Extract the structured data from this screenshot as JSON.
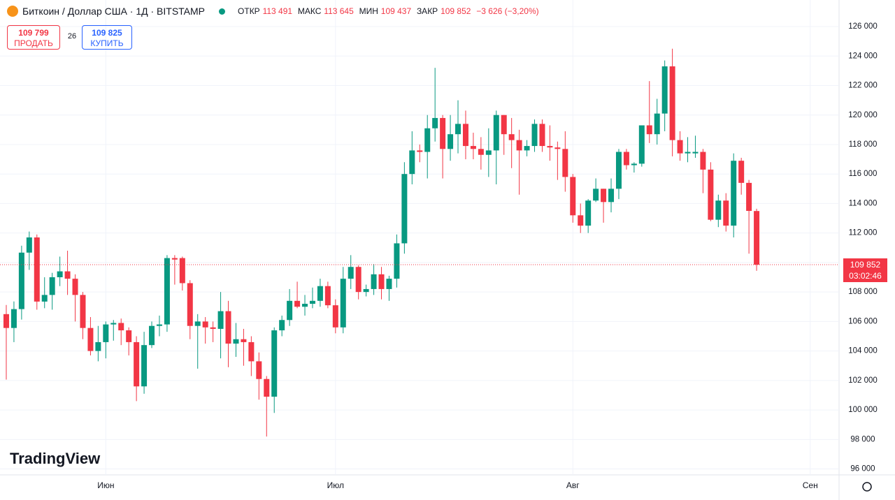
{
  "header": {
    "title": "Биткоин / Доллар США · 1Д · BITSTAMP",
    "open_label": "ОТКР",
    "open": "113 491",
    "high_label": "МАКС",
    "high": "113 645",
    "low_label": "МИН",
    "low": "109 437",
    "close_label": "ЗАКР",
    "close": "109 852",
    "change": "−3 626 (−3,20%)"
  },
  "trade": {
    "sell_price": "109 799",
    "sell_label": "ПРОДАТЬ",
    "spread": "26",
    "buy_price": "109 825",
    "buy_label": "КУПИТЬ"
  },
  "price_tag": {
    "price": "109 852",
    "countdown": "03:02:46"
  },
  "logo": "TradingView",
  "chart_data": {
    "type": "candlestick",
    "up_color": "#089981",
    "down_color": "#f23645",
    "grid": true,
    "x": [
      0,
      1,
      2,
      3,
      4,
      5,
      6,
      7,
      8,
      9,
      10,
      11,
      12,
      13,
      14,
      15,
      16,
      17,
      18,
      19,
      20,
      21,
      22,
      23,
      24,
      25,
      26,
      27,
      28,
      29,
      30,
      31,
      32,
      33,
      34,
      35,
      36,
      37,
      38,
      39,
      40,
      41,
      42,
      43,
      44,
      45,
      46,
      47,
      48,
      49,
      50,
      51,
      52,
      53,
      54,
      55,
      56,
      57,
      58,
      59,
      60,
      61,
      62,
      63,
      64,
      65,
      66,
      67,
      68,
      69,
      70,
      71,
      72,
      73,
      74,
      75,
      76,
      77,
      78,
      79,
      80,
      81,
      82,
      83,
      84,
      85,
      86,
      87,
      88,
      89,
      90,
      91,
      92,
      93,
      94,
      95,
      96,
      97,
      98
    ],
    "open": [
      106500,
      105560,
      106840,
      110670,
      111700,
      107350,
      107800,
      109000,
      109400,
      108900,
      107800,
      105560,
      104000,
      104600,
      105800,
      105900,
      105400,
      104600,
      101600,
      104400,
      105700,
      105800,
      110300,
      110300,
      108600,
      105700,
      106000,
      105600,
      105500,
      106700,
      104500,
      104800,
      104600,
      103300,
      102100,
      100900,
      105400,
      106100,
      107400,
      107000,
      107200,
      107400,
      108400,
      107100,
      105600,
      108900,
      109700,
      108000,
      108200,
      109200,
      108200,
      108900,
      111300,
      116000,
      117600,
      117500,
      119100,
      119800,
      117700,
      118700,
      119400,
      117900,
      117700,
      117300,
      117600,
      120000,
      118700,
      118300,
      117600,
      117900,
      119400,
      117900,
      117800,
      117700,
      115800,
      113200,
      112500,
      114200,
      115000,
      114100,
      115000,
      117500,
      116600,
      116700,
      119300,
      118700,
      120100,
      123300,
      118300,
      117400,
      117400,
      117500,
      116300,
      112900,
      114200,
      112500,
      116900,
      115400,
      113491
    ],
    "high": [
      107120,
      107360,
      111140,
      112100,
      111900,
      109000,
      109300,
      110400,
      110800,
      109200,
      108000,
      106300,
      105700,
      106000,
      106100,
      106200,
      105600,
      105000,
      105300,
      106000,
      106400,
      110500,
      110500,
      110400,
      108800,
      106500,
      106300,
      106000,
      108000,
      107400,
      105900,
      105500,
      105000,
      103900,
      102300,
      105600,
      106400,
      108200,
      108700,
      107800,
      108300,
      108900,
      108700,
      107500,
      109700,
      110500,
      109800,
      108500,
      109900,
      109700,
      109100,
      111900,
      116800,
      118900,
      118000,
      120000,
      123200,
      120000,
      120000,
      121000,
      120300,
      118800,
      118500,
      119100,
      120300,
      120000,
      119800,
      119000,
      118300,
      119700,
      119700,
      119300,
      118200,
      118900,
      116000,
      114000,
      114300,
      115700,
      115000,
      115700,
      117700,
      117700,
      116800,
      119300,
      122300,
      121100,
      123700,
      124500,
      118900,
      118500,
      118600,
      117700,
      116800,
      114600,
      114700,
      117400,
      117100,
      115600,
      113645
    ],
    "low": [
      102060,
      104600,
      106130,
      109500,
      106800,
      106900,
      106800,
      108400,
      107800,
      106000,
      104800,
      103700,
      103300,
      103500,
      104700,
      104400,
      103700,
      100600,
      101100,
      104200,
      105000,
      105300,
      108500,
      108100,
      104800,
      102800,
      104500,
      104600,
      103500,
      102900,
      103600,
      103000,
      102300,
      100700,
      98200,
      99800,
      105000,
      105700,
      106900,
      106400,
      106900,
      107000,
      106900,
      105200,
      105200,
      108200,
      107500,
      107700,
      107800,
      107500,
      107400,
      108300,
      110600,
      115300,
      116800,
      115700,
      118200,
      115700,
      116900,
      117400,
      117000,
      117000,
      116300,
      115800,
      115300,
      117300,
      116400,
      114600,
      117200,
      117500,
      117500,
      116900,
      115600,
      114800,
      112700,
      112000,
      112000,
      114100,
      112700,
      113400,
      114300,
      116300,
      116100,
      116500,
      118100,
      118000,
      118900,
      117200,
      116900,
      116800,
      117100,
      114700,
      112800,
      112400,
      112100,
      111700,
      114600,
      110600,
      109437
    ],
    "close": [
      105560,
      106840,
      110670,
      111700,
      107350,
      107800,
      109000,
      109400,
      108900,
      107800,
      105560,
      104000,
      104600,
      105800,
      105900,
      105400,
      104600,
      101600,
      104400,
      105700,
      105800,
      110300,
      110200,
      108600,
      105700,
      106000,
      105600,
      105500,
      106700,
      104500,
      104800,
      104600,
      103300,
      102100,
      100900,
      105400,
      106100,
      107400,
      107000,
      107200,
      107400,
      108400,
      107100,
      105600,
      108900,
      109700,
      108000,
      108200,
      109200,
      108200,
      108900,
      111300,
      116000,
      117600,
      117500,
      119100,
      119800,
      117700,
      118700,
      119400,
      117900,
      117700,
      117300,
      117600,
      120000,
      118700,
      118300,
      117600,
      117900,
      119400,
      117900,
      117800,
      117700,
      115800,
      113200,
      112500,
      114200,
      115000,
      114100,
      115000,
      117500,
      116600,
      116700,
      119300,
      118700,
      120100,
      123300,
      118300,
      117400,
      117500,
      117500,
      116300,
      112900,
      114200,
      112500,
      116900,
      115400,
      113500,
      109852
    ],
    "xlim": [
      -0.82,
      108.77
    ],
    "xticks": [
      {
        "value": 13,
        "label": "Июн"
      },
      {
        "value": 43,
        "label": "Июл"
      },
      {
        "value": 74,
        "label": "Авг"
      },
      {
        "value": 105,
        "label": "Сен"
      }
    ],
    "ylim": [
      95600,
      127800
    ],
    "yticks": [
      {
        "value": 96000,
        "label": "96 000"
      },
      {
        "value": 98000,
        "label": "98 000"
      },
      {
        "value": 100000,
        "label": "100 000"
      },
      {
        "value": 102000,
        "label": "102 000"
      },
      {
        "value": 104000,
        "label": "104 000"
      },
      {
        "value": 106000,
        "label": "106 000"
      },
      {
        "value": 108000,
        "label": "108 000"
      },
      {
        "value": 110000,
        "label": "110 000"
      },
      {
        "value": 112000,
        "label": "112 000"
      },
      {
        "value": 114000,
        "label": "114 000"
      },
      {
        "value": 116000,
        "label": "116 000"
      },
      {
        "value": 118000,
        "label": "118 000"
      },
      {
        "value": 120000,
        "label": "120 000"
      },
      {
        "value": 122000,
        "label": "122 000"
      },
      {
        "value": 124000,
        "label": "124 000"
      },
      {
        "value": 126000,
        "label": "126 000"
      }
    ]
  }
}
